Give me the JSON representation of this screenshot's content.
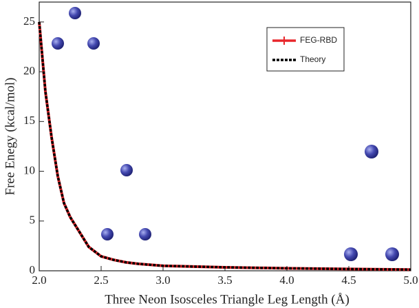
{
  "chart_data": {
    "type": "line",
    "xlabel": "Three Neon Isosceles Triangle Leg Length (Å)",
    "ylabel": "Free Enegy (kcal/mol)",
    "x": [
      2.0,
      2.05,
      2.1,
      2.15,
      2.2,
      2.25,
      2.3,
      2.4,
      2.5,
      2.6,
      2.7,
      2.8,
      3.0,
      3.5,
      4.0,
      4.5,
      5.0
    ],
    "series": [
      {
        "name": "FEG-RBD",
        "color": "#e8262b",
        "dashed": false,
        "values": [
          25,
          18,
          13.4,
          9.5,
          6.8,
          5.4,
          4.4,
          2.4,
          1.45,
          1.1,
          0.85,
          0.7,
          0.5,
          0.35,
          0.25,
          0.18,
          0.12
        ]
      },
      {
        "name": "Theory",
        "color": "#000000",
        "dashed": true,
        "values": [
          25,
          18,
          13.4,
          9.5,
          6.8,
          5.4,
          4.4,
          2.4,
          1.45,
          1.1,
          0.85,
          0.7,
          0.5,
          0.35,
          0.25,
          0.18,
          0.12
        ]
      }
    ],
    "xlim": [
      2.0,
      5.0
    ],
    "xticks": [
      {
        "value": 2,
        "label": "2.0"
      },
      {
        "value": 2.5,
        "label": "2.5"
      },
      {
        "value": 3,
        "label": "3.0"
      },
      {
        "value": 3.5,
        "label": "3.5"
      },
      {
        "value": 4,
        "label": "4.0"
      },
      {
        "value": 4.5,
        "label": "4.5"
      },
      {
        "value": 5,
        "label": "5.0"
      }
    ],
    "ylim": [
      0,
      27
    ],
    "yticks": [
      0,
      5,
      10,
      15,
      20,
      25
    ],
    "legend": "upper right"
  }
}
